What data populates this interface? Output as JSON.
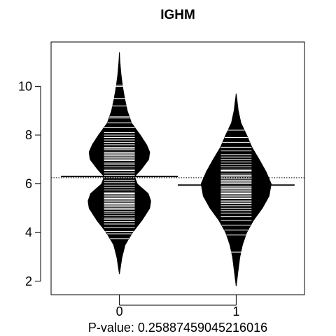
{
  "chart_data": {
    "type": "beanplot",
    "title": "IGHM",
    "xlabel": "P-value: 0.25887459045216016",
    "ylabel": "",
    "categories": [
      "0",
      "1"
    ],
    "ylim": [
      1.5,
      11.8
    ],
    "yticks": [
      2,
      4,
      6,
      8,
      10
    ],
    "overall_mean": 6.25,
    "groups": [
      {
        "name": "0",
        "mean": 6.3,
        "range": [
          2.3,
          11.4
        ],
        "density": [
          [
            2.3,
            0.0
          ],
          [
            3.0,
            0.05
          ],
          [
            3.5,
            0.11
          ],
          [
            4.0,
            0.25
          ],
          [
            4.5,
            0.43
          ],
          [
            5.0,
            0.58
          ],
          [
            5.3,
            0.6
          ],
          [
            5.6,
            0.55
          ],
          [
            6.0,
            0.34
          ],
          [
            6.3,
            0.29
          ],
          [
            6.6,
            0.42
          ],
          [
            7.0,
            0.56
          ],
          [
            7.3,
            0.58
          ],
          [
            7.6,
            0.52
          ],
          [
            8.0,
            0.4
          ],
          [
            8.5,
            0.23
          ],
          [
            9.0,
            0.15
          ],
          [
            9.5,
            0.1
          ],
          [
            10.0,
            0.06
          ],
          [
            10.5,
            0.03
          ],
          [
            11.0,
            0.01
          ],
          [
            11.4,
            0.0
          ]
        ],
        "observations": [
          3.75,
          3.95,
          4.05,
          4.2,
          4.35,
          4.45,
          4.55,
          4.6,
          4.7,
          4.8,
          4.85,
          4.95,
          5.0,
          5.05,
          5.1,
          5.15,
          5.2,
          5.25,
          5.3,
          5.35,
          5.4,
          5.45,
          5.5,
          5.55,
          5.6,
          5.65,
          5.75,
          5.85,
          5.95,
          6.05,
          6.15,
          6.25,
          6.35,
          6.45,
          6.55,
          6.6,
          6.7,
          6.8,
          6.85,
          6.95,
          7.0,
          7.05,
          7.1,
          7.15,
          7.2,
          7.25,
          7.3,
          7.4,
          7.45,
          7.5,
          7.6,
          7.7,
          7.8,
          7.9,
          8.0,
          8.1,
          8.3,
          8.5,
          8.7,
          8.75,
          9.2,
          9.5,
          10.0,
          10.05
        ]
      },
      {
        "name": "1",
        "mean": 5.95,
        "range": [
          1.8,
          9.7
        ],
        "density": [
          [
            1.8,
            0.0
          ],
          [
            2.5,
            0.04
          ],
          [
            3.0,
            0.07
          ],
          [
            3.5,
            0.12
          ],
          [
            4.0,
            0.2
          ],
          [
            4.5,
            0.33
          ],
          [
            5.0,
            0.5
          ],
          [
            5.5,
            0.63
          ],
          [
            6.0,
            0.67
          ],
          [
            6.5,
            0.57
          ],
          [
            7.0,
            0.44
          ],
          [
            7.5,
            0.3
          ],
          [
            8.0,
            0.2
          ],
          [
            8.5,
            0.09
          ],
          [
            9.0,
            0.04
          ],
          [
            9.7,
            0.0
          ]
        ],
        "observations": [
          3.2,
          3.9,
          4.1,
          4.3,
          4.5,
          4.65,
          4.8,
          4.9,
          5.0,
          5.1,
          5.2,
          5.25,
          5.3,
          5.4,
          5.45,
          5.5,
          5.55,
          5.6,
          5.65,
          5.7,
          5.75,
          5.8,
          5.85,
          5.9,
          5.95,
          6.0,
          6.05,
          6.1,
          6.15,
          6.2,
          6.25,
          6.3,
          6.35,
          6.4,
          6.5,
          6.55,
          6.6,
          6.7,
          6.8,
          6.9,
          7.0,
          7.1,
          7.2,
          7.35,
          7.5,
          7.7,
          7.9,
          8.2
        ]
      }
    ]
  }
}
